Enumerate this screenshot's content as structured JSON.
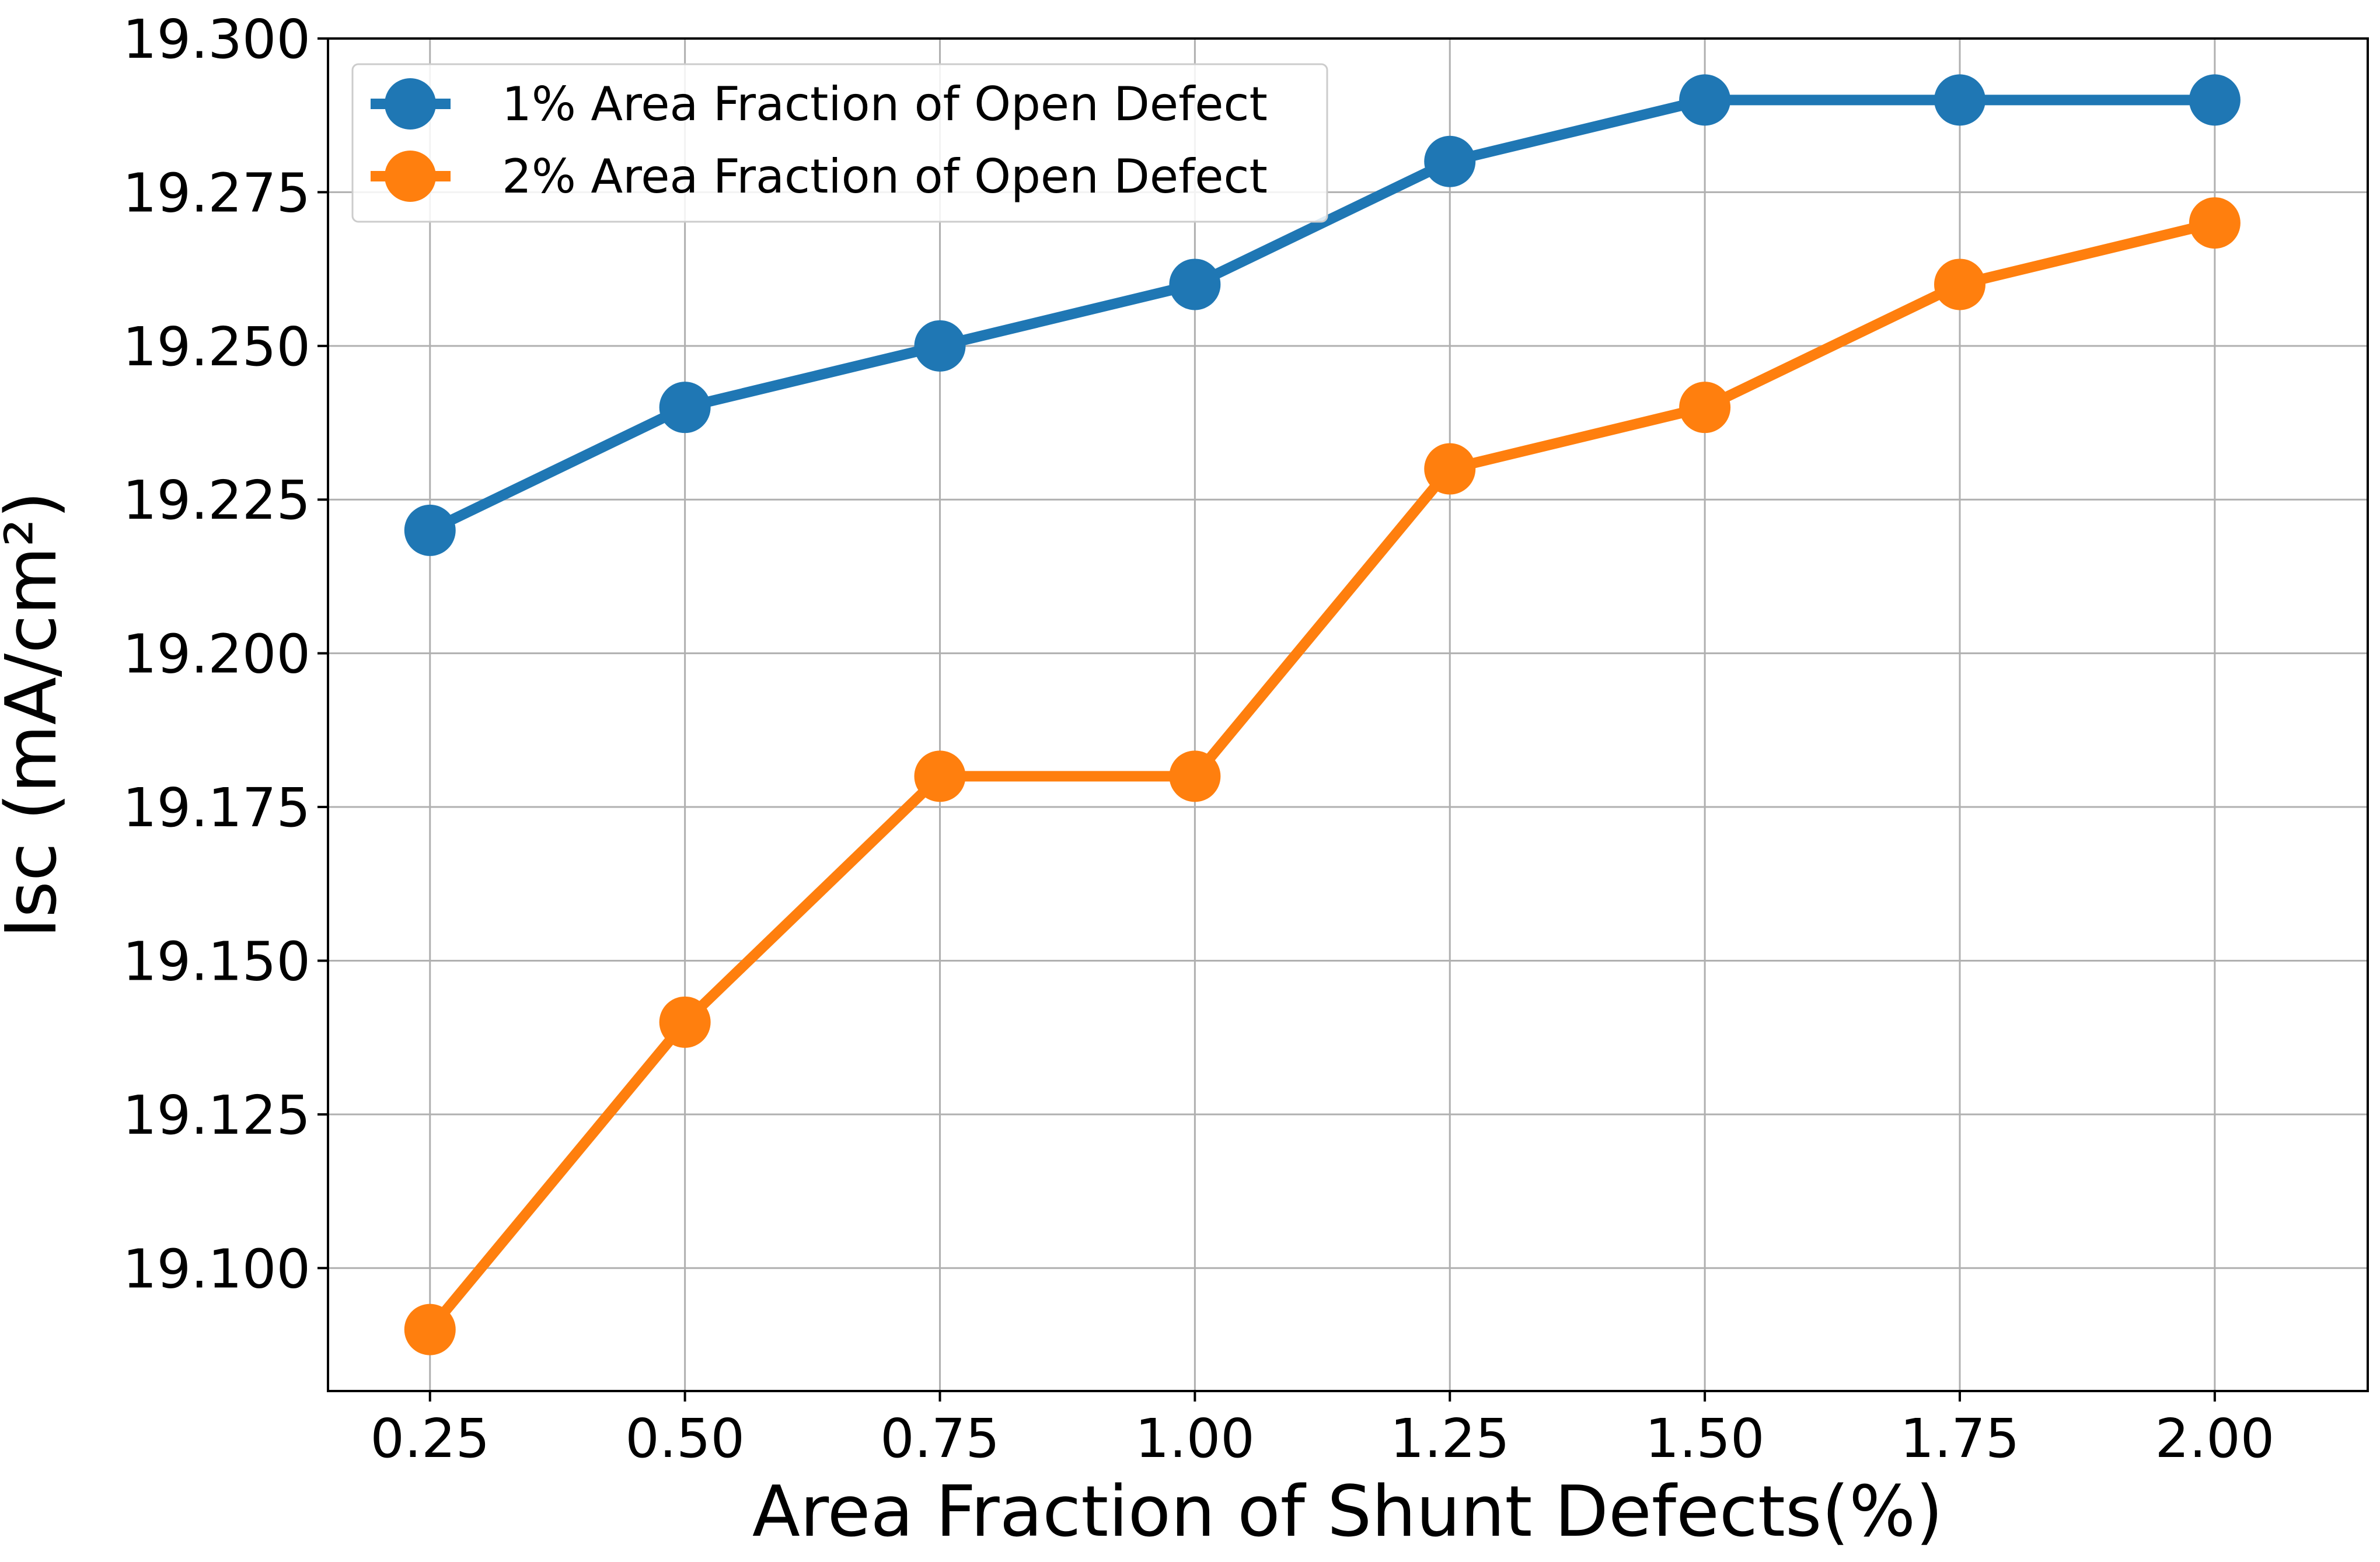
{
  "chart_data": {
    "type": "line",
    "title": "",
    "xlabel": "Area Fraction of Shunt Defects(%)",
    "ylabel": "Isc (mA/cm²)",
    "x": [
      0.25,
      0.5,
      0.75,
      1.0,
      1.25,
      1.5,
      1.75,
      2.0
    ],
    "xlim": [
      0.15,
      2.15
    ],
    "ylim": [
      19.08,
      19.3
    ],
    "xticks": [
      0.25,
      0.5,
      0.75,
      1.0,
      1.25,
      1.5,
      1.75,
      2.0
    ],
    "xtick_labels": [
      "0.25",
      "0.50",
      "0.75",
      "1.00",
      "1.25",
      "1.50",
      "1.75",
      "2.00"
    ],
    "yticks": [
      19.1,
      19.125,
      19.15,
      19.175,
      19.2,
      19.225,
      19.25,
      19.275,
      19.3
    ],
    "ytick_labels": [
      "19.100",
      "19.125",
      "19.150",
      "19.175",
      "19.200",
      "19.225",
      "19.250",
      "19.275",
      "19.300"
    ],
    "grid": true,
    "legend_position": "top-left",
    "series": [
      {
        "name": "1% Area Fraction of Open Defect",
        "color": "#1f77b4",
        "values": [
          19.22,
          19.24,
          19.25,
          19.26,
          19.28,
          19.29,
          19.29,
          19.29
        ]
      },
      {
        "name": "2% Area Fraction of Open Defect",
        "color": "#ff7f0e",
        "values": [
          19.09,
          19.14,
          19.18,
          19.18,
          19.23,
          19.24,
          19.26,
          19.27
        ]
      }
    ]
  }
}
